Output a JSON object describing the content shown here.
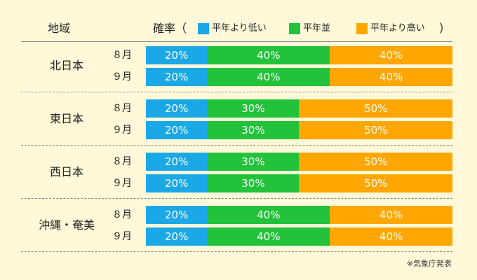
{
  "header": {
    "region_label": "地域",
    "prob_label": "確率（",
    "close_paren": "）"
  },
  "colors": {
    "below": "#1ba8e6",
    "normal": "#22c23a",
    "above": "#ffa600"
  },
  "note": "※気象庁発表",
  "chart_data": {
    "type": "bar",
    "stacked": true,
    "orientation": "horizontal",
    "legend": [
      "平年より低い",
      "平年並",
      "平年より高い"
    ],
    "groups": [
      {
        "region": "北日本",
        "rows": [
          {
            "month": "８月",
            "values": [
              20,
              40,
              40
            ]
          },
          {
            "month": "９月",
            "values": [
              20,
              40,
              40
            ]
          }
        ]
      },
      {
        "region": "東日本",
        "rows": [
          {
            "month": "８月",
            "values": [
              20,
              30,
              50
            ]
          },
          {
            "month": "９月",
            "values": [
              20,
              30,
              50
            ]
          }
        ]
      },
      {
        "region": "西日本",
        "rows": [
          {
            "month": "８月",
            "values": [
              20,
              30,
              50
            ]
          },
          {
            "month": "９月",
            "values": [
              20,
              30,
              50
            ]
          }
        ]
      },
      {
        "region": "沖縄・奄美",
        "rows": [
          {
            "month": "８月",
            "values": [
              20,
              40,
              40
            ]
          },
          {
            "month": "９月",
            "values": [
              20,
              40,
              40
            ]
          }
        ]
      }
    ],
    "unit": "%",
    "xlim": [
      0,
      100
    ]
  }
}
